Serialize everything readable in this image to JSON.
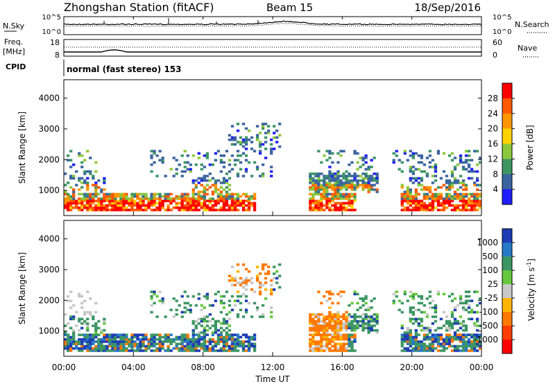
{
  "header": {
    "title": "Zhongshan Station (fitACF)",
    "beam": "Beam 15",
    "date": "18/Sep/2016"
  },
  "sky_panel": {
    "left_label": "N.Sky",
    "right_label": "N.Search",
    "left_ticks": [
      "10^5",
      "10^0"
    ],
    "right_ticks": [
      "10^5",
      "10^0"
    ]
  },
  "freq_panel": {
    "left_label_1": "Freq.",
    "left_label_2": "[MHz]",
    "right_label": "Nave",
    "left_ticks": [
      "18",
      "8"
    ],
    "right_ticks": [
      "60",
      "0"
    ]
  },
  "cpid": {
    "label": "CPID",
    "mode": "normal (fast stereo) 153"
  },
  "chart_data": [
    {
      "type": "heatmap",
      "ylabel": "Slant Range [km]",
      "yticks": [
        "4000",
        "3000",
        "2000",
        "1000"
      ],
      "ylim": [
        180,
        4600
      ],
      "colorbar": {
        "label": "Power [dB]",
        "ticks": [
          "28",
          "24",
          "20",
          "16",
          "12",
          "8",
          "4"
        ],
        "colors": [
          "#ff0000",
          "#ff5a00",
          "#ff9600",
          "#ffd200",
          "#8cc83c",
          "#3c9664",
          "#3c64a0",
          "#1e1eff"
        ]
      }
    },
    {
      "type": "heatmap",
      "ylabel": "Slant Range [km]",
      "yticks": [
        "4000",
        "3000",
        "2000",
        "1000"
      ],
      "ylim": [
        180,
        4600
      ],
      "colorbar": {
        "label": "Velocity [m s",
        "label_sup": "-1",
        "label_end": "]",
        "ticks": [
          "1000",
          "500",
          "100",
          "25",
          "-25",
          "-100",
          "-500",
          "-1000"
        ],
        "colors": [
          "#1e3cb4",
          "#2878c8",
          "#3c9664",
          "#64c83c",
          "#c8c8c8",
          "#ffb400",
          "#ff7800",
          "#ff3c00",
          "#ff0000"
        ]
      }
    }
  ],
  "xaxis": {
    "label": "Time UT",
    "ticks": [
      "00:00",
      "04:00",
      "08:00",
      "12:00",
      "16:00",
      "20:00",
      "00:00"
    ]
  }
}
